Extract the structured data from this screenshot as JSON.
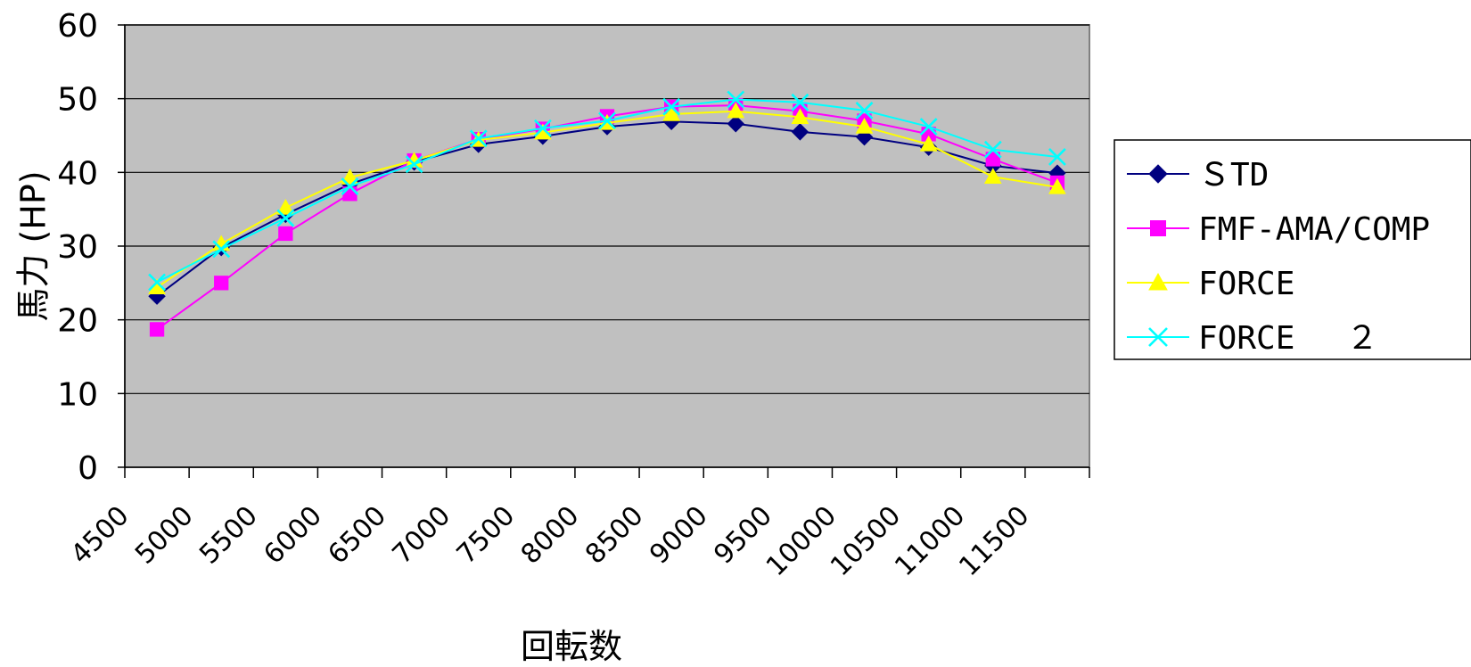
{
  "chart_data": {
    "type": "line",
    "categories": [
      "4500",
      "5000",
      "5500",
      "6000",
      "6500",
      "7000",
      "7500",
      "8000",
      "8500",
      "9000",
      "9500",
      "10000",
      "10500",
      "11000",
      "11500"
    ],
    "xlabel": "回転数",
    "ylabel": "馬力 (HP)",
    "ylim": [
      0,
      60
    ],
    "yticks": [
      0,
      10,
      20,
      30,
      40,
      50,
      60
    ],
    "grid": true,
    "plot_background": "#c0c0c0",
    "legend_position": "right",
    "series": [
      {
        "name": "ＳTD",
        "color": "#000080",
        "marker": "diamond",
        "values": [
          23.2,
          29.8,
          34.3,
          38.4,
          41.4,
          43.8,
          44.9,
          46.2,
          46.9,
          46.6,
          45.5,
          44.8,
          43.4,
          40.9,
          39.9
        ]
      },
      {
        "name": "FMF-AMA/COMP",
        "color": "#ff00ff",
        "marker": "square",
        "values": [
          18.7,
          25.0,
          31.7,
          37.1,
          41.6,
          44.5,
          45.9,
          47.6,
          48.9,
          49.1,
          48.3,
          47.0,
          45.2,
          41.8,
          38.6
        ]
      },
      {
        "name": "FORCE",
        "color": "#ffff00",
        "marker": "triangle",
        "values": [
          24.4,
          30.3,
          35.2,
          39.3,
          41.6,
          44.4,
          45.4,
          46.7,
          47.9,
          48.3,
          47.5,
          46.2,
          43.8,
          39.4,
          38.0
        ]
      },
      {
        "name": "FORCE　 ２",
        "color": "#00ffff",
        "marker": "x",
        "values": [
          25.1,
          29.6,
          33.8,
          38.1,
          41.1,
          44.6,
          46.0,
          47.0,
          48.9,
          49.9,
          49.5,
          48.4,
          46.2,
          43.1,
          42.1
        ]
      }
    ]
  }
}
